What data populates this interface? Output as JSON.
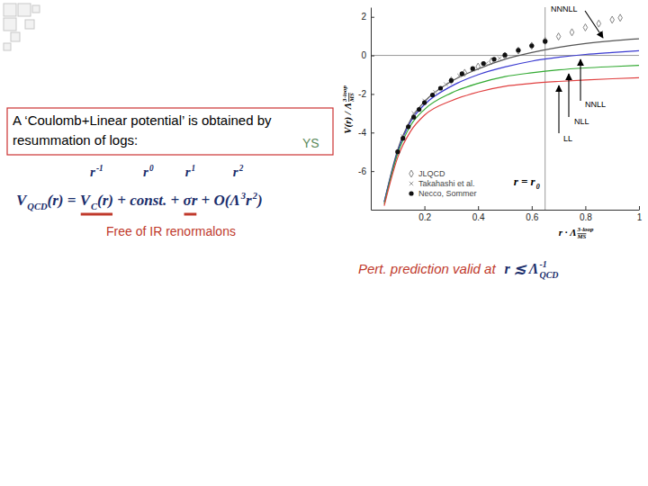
{
  "chart_data": {
    "type": "line",
    "xlabel": [
      {
        "text": "r · Λ",
        "sup": "3-loop",
        "sub": "MS"
      }
    ],
    "ylabel": [
      {
        "text": "V(r) / Λ",
        "sup": "3-loop",
        "sub": "MS"
      }
    ],
    "xlim": [
      0,
      1
    ],
    "ylim": [
      -8,
      2.5
    ],
    "xticks": [
      0.2,
      0.4,
      0.6,
      0.8,
      1
    ],
    "yticks": [
      -6,
      -4,
      -2,
      0,
      2
    ],
    "legend": "lower-left",
    "vline": {
      "x": 0.65,
      "label": [
        {
          "text": "r = r",
          "sub": "0"
        }
      ]
    },
    "series": [
      {
        "name": "NNNLL",
        "type": "line",
        "color": "#555555",
        "line_style": "solid",
        "x": [
          0.05,
          0.1,
          0.15,
          0.2,
          0.3,
          0.4,
          0.5,
          0.6,
          0.7,
          0.8,
          0.9,
          1.0
        ],
        "values": [
          -7.6,
          -4.9,
          -3.3,
          -2.4,
          -1.35,
          -0.7,
          -0.2,
          0.15,
          0.42,
          0.62,
          0.76,
          0.86
        ]
      },
      {
        "name": "NNLL",
        "type": "line",
        "color": "#3a3ad0",
        "line_style": "solid",
        "x": [
          0.05,
          0.1,
          0.15,
          0.2,
          0.3,
          0.4,
          0.5,
          0.6,
          0.7,
          0.8,
          0.9,
          1.0
        ],
        "values": [
          -7.6,
          -5.0,
          -3.4,
          -2.55,
          -1.6,
          -1.0,
          -0.6,
          -0.3,
          -0.1,
          0.05,
          0.15,
          0.24
        ]
      },
      {
        "name": "NLL",
        "type": "line",
        "color": "#33aa33",
        "line_style": "solid",
        "x": [
          0.05,
          0.1,
          0.15,
          0.2,
          0.3,
          0.4,
          0.5,
          0.6,
          0.7,
          0.8,
          0.9,
          1.0
        ],
        "values": [
          -7.7,
          -5.1,
          -3.6,
          -2.8,
          -1.95,
          -1.45,
          -1.1,
          -0.9,
          -0.75,
          -0.65,
          -0.58,
          -0.52
        ]
      },
      {
        "name": "LL",
        "type": "line",
        "color": "#e04040",
        "line_style": "solid",
        "x": [
          0.05,
          0.1,
          0.15,
          0.2,
          0.3,
          0.4,
          0.5,
          0.6,
          0.7,
          0.8,
          0.9,
          1.0
        ],
        "values": [
          -7.8,
          -5.3,
          -3.9,
          -3.1,
          -2.35,
          -1.9,
          -1.6,
          -1.45,
          -1.35,
          -1.27,
          -1.21,
          -1.16
        ]
      },
      {
        "name": "JLQCD",
        "type": "scatter",
        "marker": "diamond",
        "color": "#777777",
        "x": [
          0.3,
          0.35,
          0.4,
          0.45,
          0.5,
          0.55,
          0.6,
          0.65,
          0.7,
          0.75,
          0.8,
          0.85,
          0.9,
          0.93
        ],
        "values": [
          -1.3,
          -0.9,
          -0.58,
          -0.3,
          -0.02,
          0.25,
          0.5,
          0.75,
          0.98,
          1.2,
          1.45,
          1.65,
          1.85,
          1.95
        ]
      },
      {
        "name": "Takahashi et al.",
        "type": "scatter",
        "marker": "cross",
        "color": "#999999",
        "x": [
          0.12,
          0.16,
          0.2,
          0.24,
          0.28,
          0.33,
          0.38,
          0.43,
          0.48
        ],
        "values": [
          -4.2,
          -3.0,
          -2.35,
          -1.9,
          -1.5,
          -1.05,
          -0.72,
          -0.42,
          -0.15
        ]
      },
      {
        "name": "Necco, Sommer",
        "type": "scatter",
        "marker": "circle",
        "color": "#111111",
        "x": [
          0.1,
          0.12,
          0.14,
          0.16,
          0.18,
          0.2,
          0.23,
          0.26,
          0.3,
          0.34,
          0.38,
          0.42,
          0.46,
          0.5,
          0.55,
          0.6,
          0.65
        ],
        "values": [
          -5.0,
          -4.3,
          -3.7,
          -3.2,
          -2.8,
          -2.45,
          -2.05,
          -1.7,
          -1.3,
          -0.95,
          -0.68,
          -0.42,
          -0.2,
          0.02,
          0.27,
          0.5,
          0.73
        ]
      }
    ]
  },
  "slide": {
    "box_lines": [
      "A ‘Coulomb+Linear potential’ is obtained by",
      "resummation of logs:"
    ],
    "box_tag": "YS",
    "orders": [
      {
        "text": "r",
        "sup": "-1"
      },
      {
        "text": "r",
        "sup": "0"
      },
      {
        "text": "r",
        "sup": "1"
      },
      {
        "text": "r",
        "sup": "2"
      }
    ],
    "formula": [
      {
        "text": "V",
        "sub": "QCD"
      },
      {
        "text": "(r) = "
      },
      {
        "text": "V",
        "sub": "C"
      },
      {
        "text": "(r)"
      },
      {
        "text": " + "
      },
      {
        "text": "const."
      },
      {
        "text": " + "
      },
      {
        "text": "σr"
      },
      {
        "text": " + "
      },
      {
        "text": "O(Λ",
        "sup": "3"
      },
      {
        "text": "r",
        "sup": "2"
      },
      {
        "text": ")"
      }
    ],
    "note": "Free of IR renormalons",
    "validity": "Pert. prediction valid at",
    "validity_math": [
      {
        "text": "r ≲ Λ",
        "sub": "QCD",
        "sup": "-1"
      }
    ]
  }
}
